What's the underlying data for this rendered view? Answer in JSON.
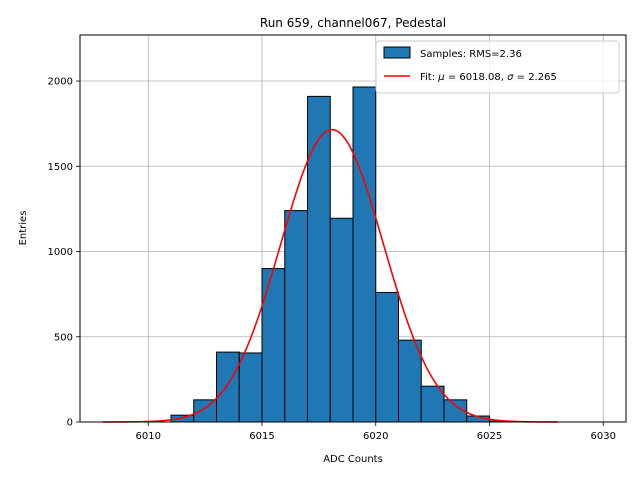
{
  "chart_data": {
    "type": "bar",
    "title": "Run 659, channel067, Pedestal",
    "xlabel": "ADC Counts",
    "ylabel": "Entries",
    "xlim": [
      6007,
      6031
    ],
    "ylim": [
      0,
      2270
    ],
    "xticks": [
      6010,
      6015,
      6020,
      6025,
      6030
    ],
    "yticks": [
      0,
      500,
      1000,
      1500,
      2000
    ],
    "grid": true,
    "legend_position": "top-right",
    "histogram": {
      "name": "Samples: RMS=2.36",
      "color": "#1f77b4",
      "edgecolor": "#000000",
      "bins": [
        {
          "x0": 6011,
          "x1": 6012,
          "count": 40
        },
        {
          "x0": 6012,
          "x1": 6013,
          "count": 130
        },
        {
          "x0": 6013,
          "x1": 6014,
          "count": 410
        },
        {
          "x0": 6014,
          "x1": 6015,
          "count": 405
        },
        {
          "x0": 6015,
          "x1": 6016,
          "count": 900
        },
        {
          "x0": 6016,
          "x1": 6017,
          "count": 1240
        },
        {
          "x0": 6017,
          "x1": 6018,
          "count": 1910
        },
        {
          "x0": 6018,
          "x1": 6019,
          "count": 1195
        },
        {
          "x0": 6019,
          "x1": 6020,
          "count": 1965
        },
        {
          "x0": 6020,
          "x1": 6021,
          "count": 760
        },
        {
          "x0": 6021,
          "x1": 6022,
          "count": 480
        },
        {
          "x0": 6022,
          "x1": 6023,
          "count": 210
        },
        {
          "x0": 6023,
          "x1": 6024,
          "count": 130
        },
        {
          "x0": 6024,
          "x1": 6025,
          "count": 35
        },
        {
          "x0": 6025,
          "x1": 6026,
          "count": 5
        }
      ]
    },
    "fit": {
      "name": "Fit: μ = 6018.08, σ = 2.265",
      "name_prefix": "Fit: ",
      "name_mu_symbol": "μ",
      "name_mu_text": " = 6018.08, ",
      "name_sigma_symbol": "σ",
      "name_sigma_text": " = 2.265",
      "color": "#ff0000",
      "type": "gaussian",
      "mu": 6018.08,
      "sigma": 2.265,
      "amplitude": 1715,
      "x_range": [
        6008,
        6028
      ]
    }
  }
}
